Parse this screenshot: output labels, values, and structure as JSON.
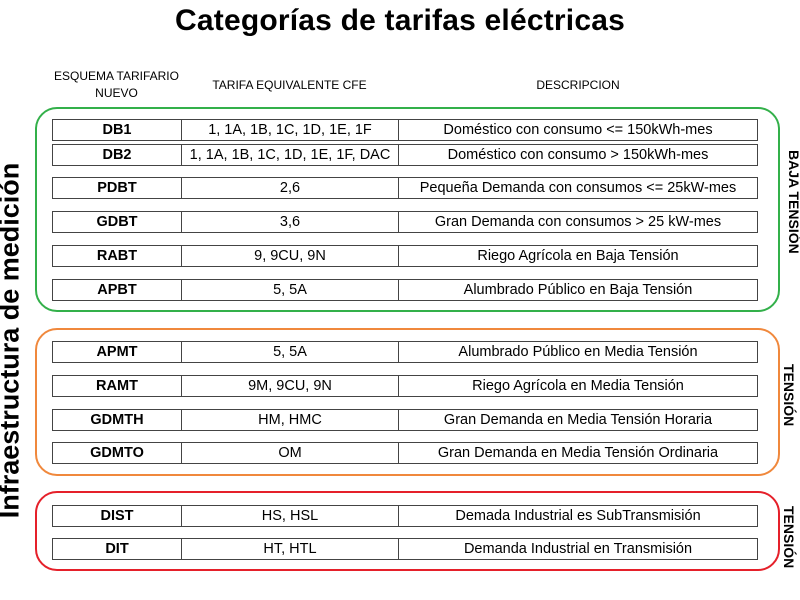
{
  "title": "Categorías de tarifas eléctricas",
  "headers": {
    "scheme": "ESQUEMA TARIFARIO NUEVO",
    "cfe": "TARIFA EQUIVALENTE CFE",
    "description": "DESCRIPCION"
  },
  "side_label_left": "Infraestructura de medición",
  "side_labels_right": [
    "BAJA TENSIÓN",
    "TENSIÓN",
    "TENSIÓN"
  ],
  "colors": {
    "low": "#33b04a",
    "medium": "#f0883c",
    "high": "#e5202a"
  },
  "groups": [
    {
      "rows": [
        {
          "code": "DB1",
          "cfe": "1, 1A, 1B, 1C, 1D, 1E, 1F",
          "desc": "Doméstico con consumo <= 150kWh-mes"
        },
        {
          "code": "DB2",
          "cfe": "1, 1A, 1B, 1C, 1D, 1E, 1F, DAC",
          "desc": "Doméstico con consumo > 150kWh-mes"
        },
        {
          "code": "PDBT",
          "cfe": "2,6",
          "desc": "Pequeña Demanda con consumos <= 25kW-mes"
        },
        {
          "code": "GDBT",
          "cfe": "3,6",
          "desc": "Gran Demanda con consumos > 25 kW-mes"
        },
        {
          "code": "RABT",
          "cfe": "9, 9CU, 9N",
          "desc": "Riego Agrícola en Baja Tensión"
        },
        {
          "code": "APBT",
          "cfe": "5, 5A",
          "desc": "Alumbrado Público en Baja Tensión"
        }
      ]
    },
    {
      "rows": [
        {
          "code": "APMT",
          "cfe": "5, 5A",
          "desc": "Alumbrado Público en Media Tensión"
        },
        {
          "code": "RAMT",
          "cfe": "9M, 9CU, 9N",
          "desc": "Riego Agrícola en Media Tensión"
        },
        {
          "code": "GDMTH",
          "cfe": "HM, HMC",
          "desc": "Gran Demanda en Media Tensión Horaria"
        },
        {
          "code": "GDMTO",
          "cfe": "OM",
          "desc": "Gran Demanda en Media Tensión Ordinaria"
        }
      ]
    },
    {
      "rows": [
        {
          "code": "DIST",
          "cfe": "HS, HSL",
          "desc": "Demada Industrial es SubTransmisión"
        },
        {
          "code": "DIT",
          "cfe": "HT, HTL",
          "desc": "Demanda Industrial en Transmisión"
        }
      ]
    }
  ]
}
